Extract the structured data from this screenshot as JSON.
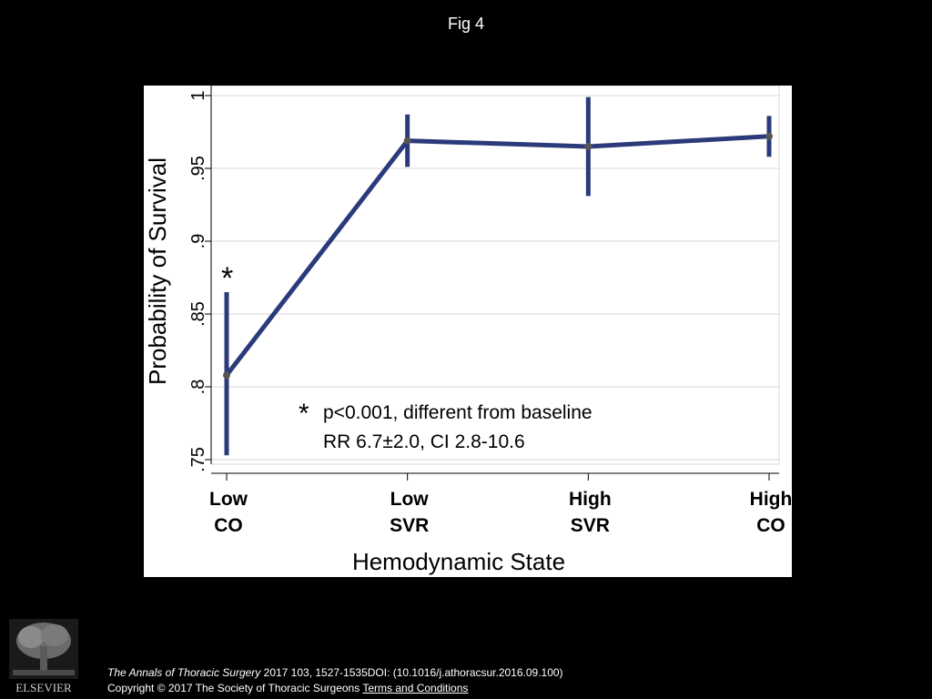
{
  "slide": {
    "title": "Fig 4"
  },
  "chart_data": {
    "type": "line",
    "title": "",
    "xlabel": "Hemodynamic State",
    "ylabel": "Probability of Survival",
    "categories": [
      [
        "Low",
        "CO"
      ],
      [
        "Low",
        "SVR"
      ],
      [
        "High",
        "SVR"
      ],
      [
        "High",
        "CO"
      ]
    ],
    "values": [
      0.808,
      0.969,
      0.965,
      0.972
    ],
    "ci_lower": [
      0.753,
      0.951,
      0.931,
      0.958
    ],
    "ci_upper": [
      0.865,
      0.987,
      0.999,
      0.986
    ],
    "ylim": [
      0.75,
      1.0
    ],
    "yticks": [
      0.75,
      0.8,
      0.85,
      0.9,
      0.95,
      1.0
    ],
    "ytick_labels": [
      ".75",
      ".8",
      ".85",
      ".9",
      ".95",
      "1"
    ],
    "grid": true,
    "line_color": "#2b3a7a",
    "marker_color": "#555555",
    "significance_marker": {
      "category_index": 0,
      "symbol": "*"
    },
    "annotation": {
      "symbol": "*",
      "line1": "p<0.001, different from baseline",
      "line2": "RR 6.7±2.0, CI 2.8-10.6"
    }
  },
  "footer": {
    "publisher": "ELSEVIER",
    "journal": "The Annals of Thoracic Surgery",
    "citation_rest": " 2017 103, 1527-1535DOI: (10.1016/j.athoracsur.2016.09.100)",
    "copyright": "Copyright © 2017 The Society of Thoracic Surgeons",
    "terms_link": "Terms and Conditions"
  }
}
